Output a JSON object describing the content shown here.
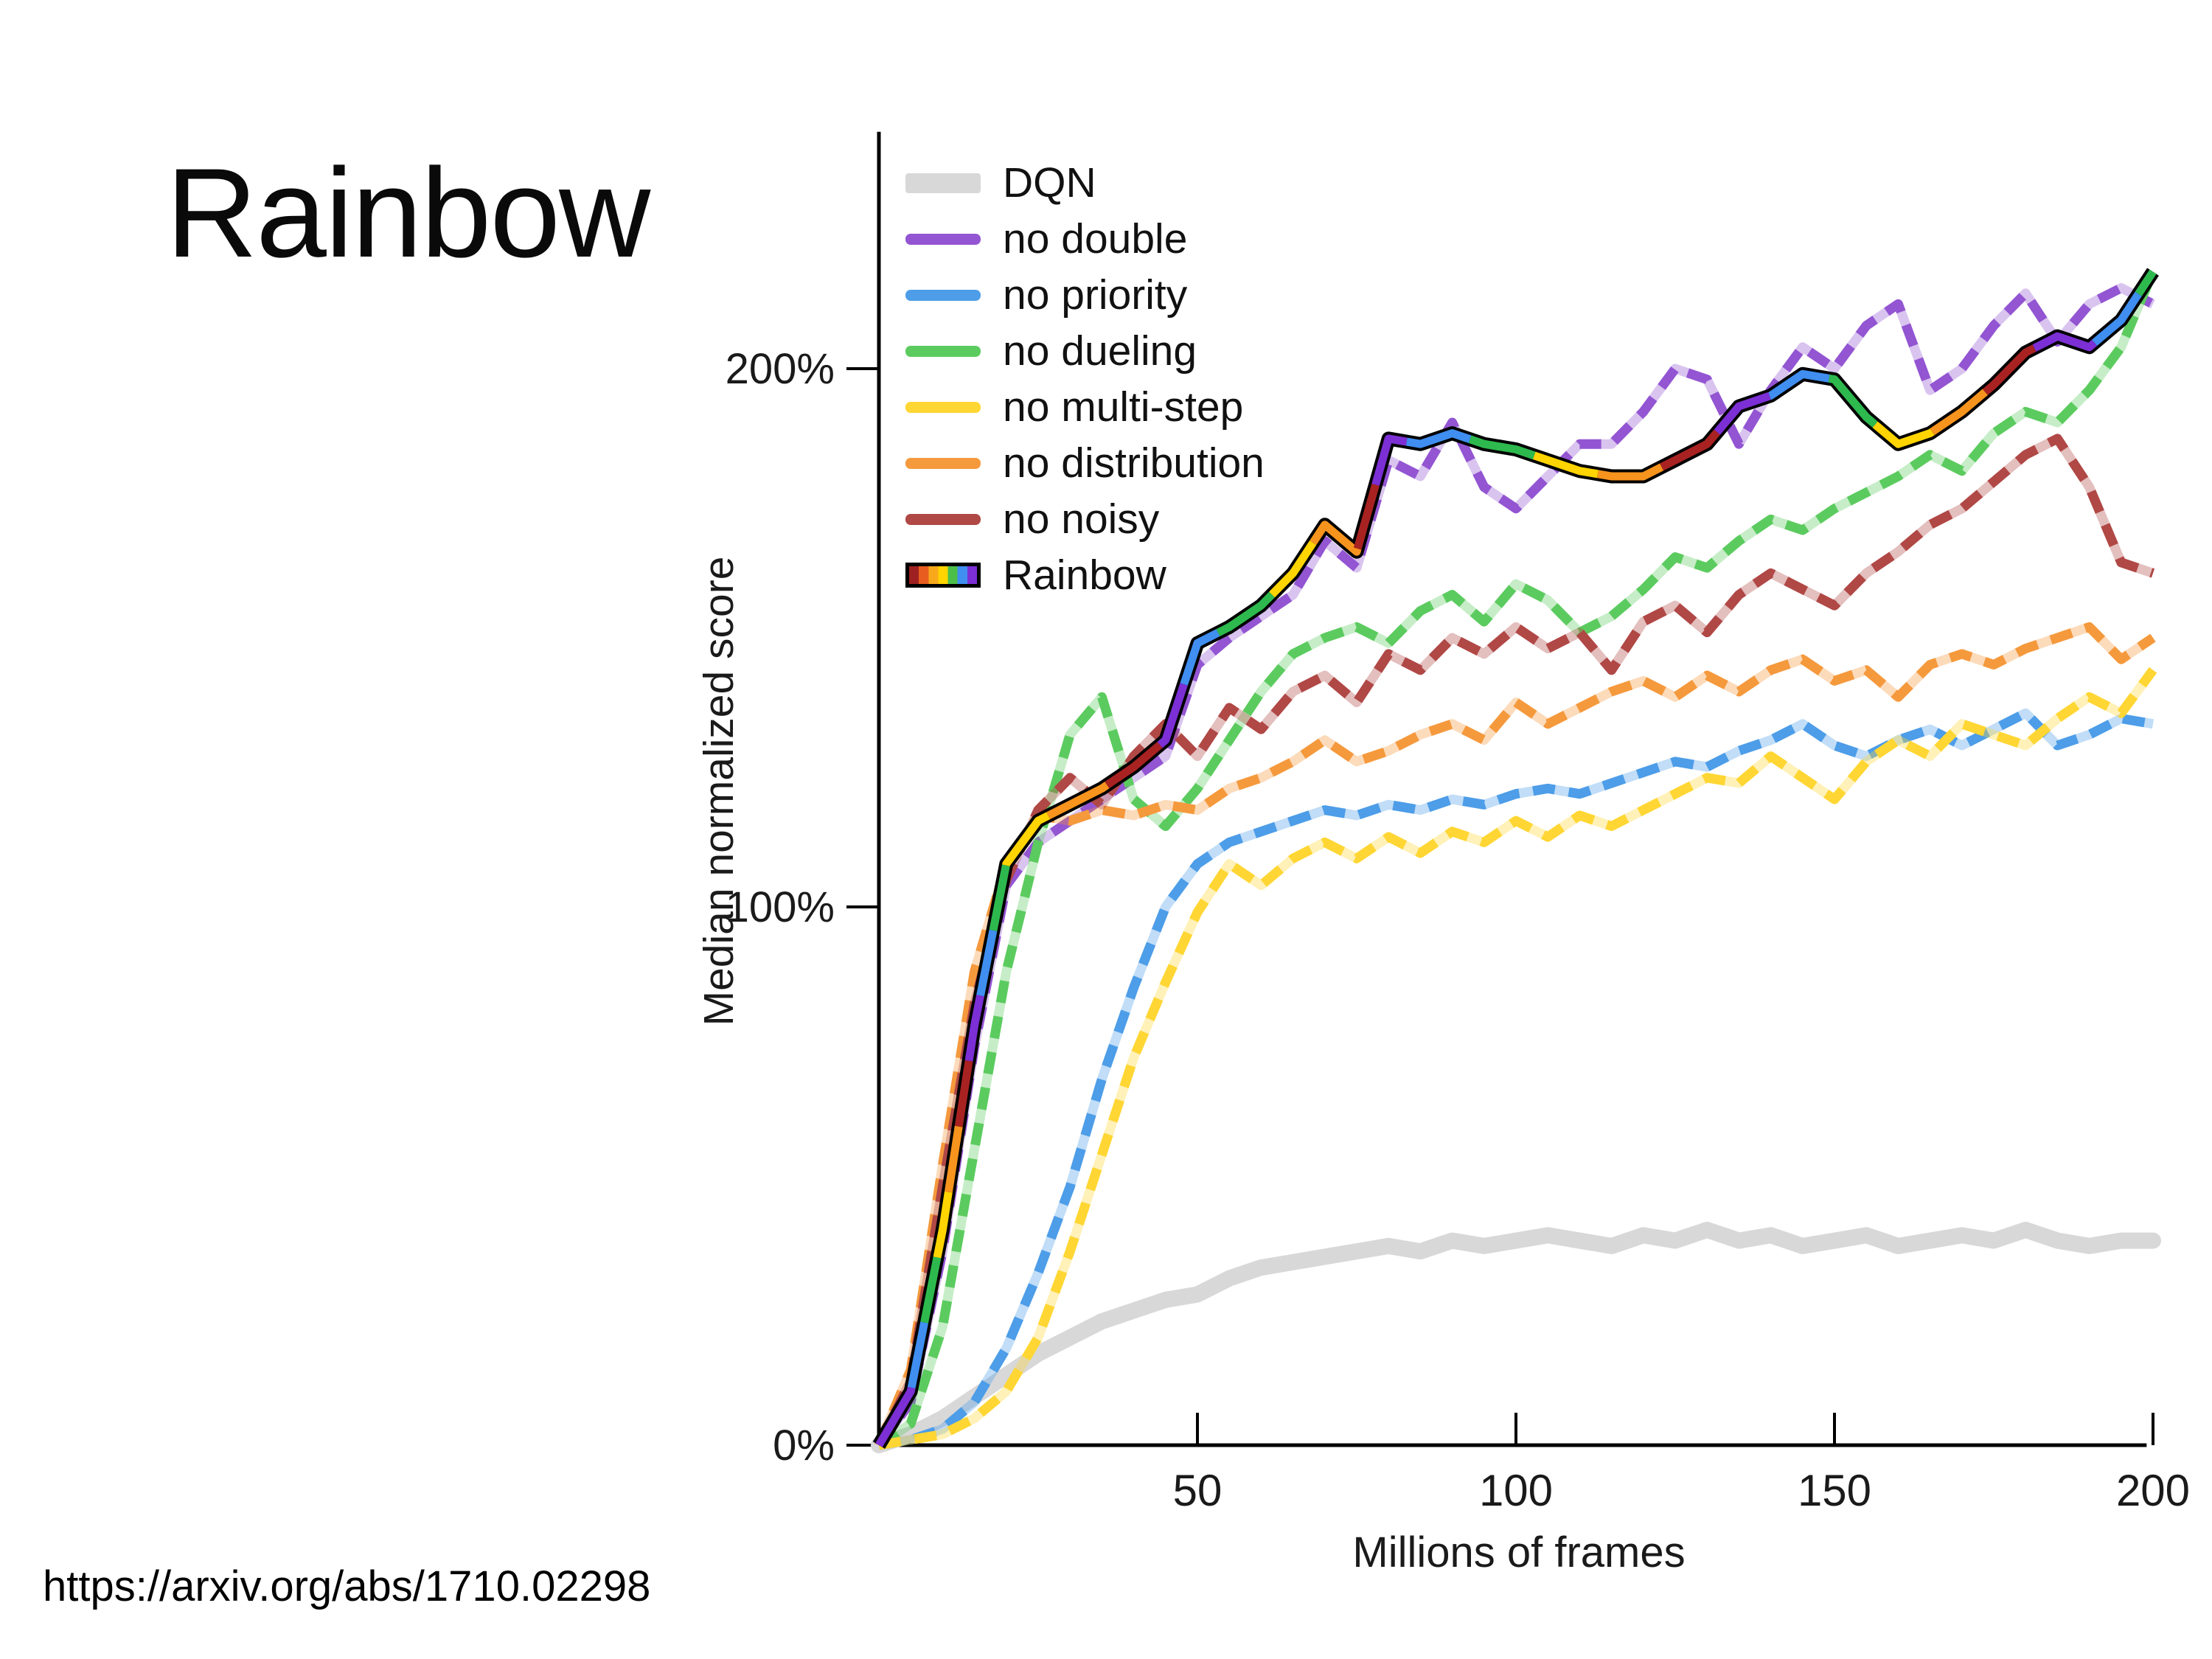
{
  "slide": {
    "title": "Rainbow",
    "source_url": "https://arxiv.org/abs/1710.02298"
  },
  "chart_data": {
    "type": "line",
    "title": "",
    "xlabel": "Millions of frames",
    "ylabel": "Median normalized score",
    "xlim": [
      0,
      202
    ],
    "ylim": [
      0,
      244
    ],
    "grid": false,
    "legend_position": "upper-left",
    "x_ticks": [
      50,
      100,
      150,
      200
    ],
    "y_ticks": [
      0,
      100,
      200
    ],
    "y_tick_labels": [
      "0%",
      "100%",
      "200%"
    ],
    "x_tick_labels": [
      "50",
      "100",
      "150",
      "200"
    ],
    "x": [
      0,
      5,
      10,
      15,
      20,
      25,
      30,
      35,
      40,
      45,
      50,
      55,
      60,
      65,
      70,
      75,
      80,
      85,
      90,
      95,
      100,
      105,
      110,
      115,
      120,
      125,
      130,
      135,
      140,
      145,
      150,
      155,
      160,
      165,
      170,
      175,
      180,
      185,
      190,
      195,
      200
    ],
    "rainbow_stripe_colors": [
      "#9e2020",
      "#e85d1f",
      "#f7a81b",
      "#ffd400",
      "#4cbf4b",
      "#3f8ef0",
      "#7c2fd4"
    ],
    "series": [
      {
        "name": "DQN",
        "color": "#d8d8d8",
        "style": "solid-thick",
        "values": [
          0,
          2,
          5,
          9,
          13,
          17,
          20,
          23,
          25,
          27,
          28,
          31,
          33,
          34,
          35,
          36,
          37,
          36,
          38,
          37,
          38,
          39,
          38,
          37,
          39,
          38,
          40,
          38,
          39,
          37,
          38,
          39,
          37,
          38,
          39,
          38,
          40,
          38,
          37,
          38,
          38
        ]
      },
      {
        "name": "no double",
        "color": "#9355d2",
        "style": "dashed",
        "values": [
          0,
          8,
          36,
          74,
          104,
          112,
          116,
          120,
          124,
          128,
          145,
          150,
          154,
          158,
          168,
          163,
          183,
          180,
          190,
          178,
          174,
          180,
          186,
          186,
          192,
          200,
          198,
          186,
          196,
          204,
          200,
          208,
          212,
          196,
          200,
          208,
          214,
          205,
          212,
          215,
          212
        ]
      },
      {
        "name": "no priority",
        "color": "#4d9de8",
        "style": "dashed",
        "values": [
          0,
          1,
          3,
          8,
          18,
          32,
          48,
          68,
          85,
          100,
          108,
          112,
          114,
          116,
          118,
          117,
          119,
          118,
          120,
          119,
          121,
          122,
          121,
          123,
          125,
          127,
          126,
          129,
          131,
          134,
          130,
          128,
          131,
          133,
          130,
          133,
          136,
          130,
          132,
          135,
          134
        ]
      },
      {
        "name": "no dueling",
        "color": "#5ccb5f",
        "style": "dashed",
        "values": [
          0,
          4,
          22,
          55,
          88,
          112,
          132,
          139,
          120,
          115,
          122,
          131,
          140,
          147,
          150,
          152,
          149,
          155,
          158,
          153,
          160,
          157,
          151,
          154,
          159,
          165,
          163,
          168,
          172,
          170,
          174,
          177,
          180,
          184,
          181,
          188,
          192,
          190,
          196,
          204,
          218
        ]
      },
      {
        "name": "no multi-step",
        "color": "#ffd633",
        "style": "dashed",
        "values": [
          0,
          1,
          2,
          5,
          10,
          20,
          36,
          54,
          72,
          86,
          99,
          108,
          104,
          109,
          112,
          109,
          113,
          110,
          114,
          112,
          116,
          113,
          117,
          115,
          118,
          121,
          124,
          123,
          128,
          124,
          120,
          127,
          131,
          128,
          134,
          132,
          130,
          135,
          139,
          136,
          144
        ]
      },
      {
        "name": "no distribution",
        "color": "#f5993d",
        "style": "dashed",
        "values": [
          0,
          14,
          52,
          88,
          108,
          117,
          116,
          118,
          117,
          119,
          118,
          122,
          124,
          127,
          131,
          127,
          129,
          132,
          134,
          131,
          138,
          134,
          137,
          140,
          142,
          139,
          143,
          140,
          144,
          146,
          142,
          144,
          139,
          145,
          147,
          145,
          148,
          150,
          152,
          146,
          150
        ]
      },
      {
        "name": "no noisy",
        "color": "#b04846",
        "style": "dashed",
        "values": [
          0,
          12,
          48,
          82,
          105,
          118,
          124,
          119,
          128,
          134,
          128,
          137,
          133,
          140,
          143,
          138,
          147,
          144,
          150,
          147,
          152,
          148,
          151,
          144,
          153,
          156,
          151,
          158,
          162,
          159,
          156,
          162,
          166,
          171,
          174,
          179,
          184,
          187,
          178,
          164,
          162
        ]
      },
      {
        "name": "Rainbow",
        "color": "#000000",
        "style": "rainbow",
        "values": [
          0,
          10,
          40,
          78,
          108,
          116,
          119,
          122,
          126,
          131,
          149,
          152,
          156,
          162,
          171,
          166,
          187,
          186,
          188,
          186,
          185,
          183,
          181,
          180,
          180,
          183,
          186,
          193,
          195,
          199,
          198,
          191,
          186,
          188,
          192,
          197,
          203,
          206,
          204,
          209,
          218
        ]
      }
    ]
  }
}
